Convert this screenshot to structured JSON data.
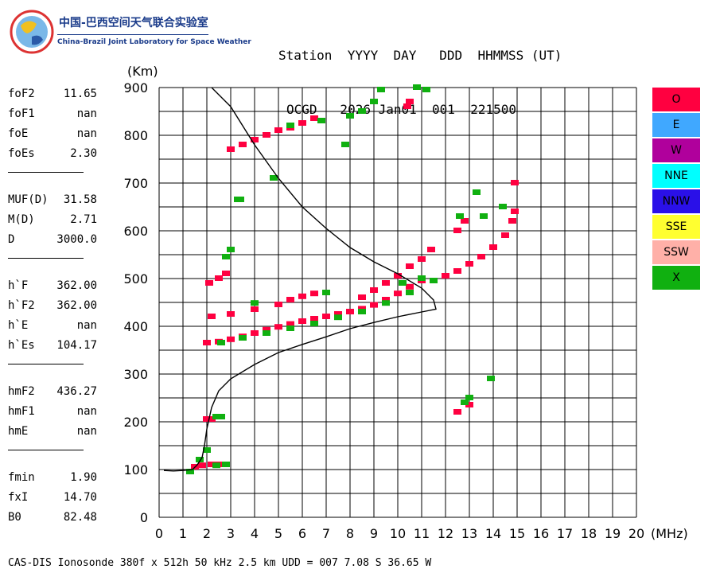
{
  "logo": {
    "title_cn": "中国-巴西空间天气联合实验室",
    "title_en": "China-Brazil Joint Laboratory for Space Weather"
  },
  "header": {
    "labels_line": "Station  YYYY  DAY   DDD  HHMMSS (UT)",
    "values_line": "OCGD   2026 Jan01  001  221500"
  },
  "params": [
    {
      "key": "foF2",
      "value": "11.65"
    },
    {
      "key": "foF1",
      "value": "nan"
    },
    {
      "key": "foE",
      "value": "nan"
    },
    {
      "key": "foEs",
      "value": "2.30"
    },
    {
      "key": "MUF(D)",
      "value": "31.58"
    },
    {
      "key": "M(D)",
      "value": "2.71"
    },
    {
      "key": "D",
      "value": "3000.0"
    },
    {
      "key": "h`F",
      "value": "362.00"
    },
    {
      "key": "h`F2",
      "value": "362.00"
    },
    {
      "key": "h`E",
      "value": "nan"
    },
    {
      "key": "h`Es",
      "value": "104.17"
    },
    {
      "key": "hmF2",
      "value": "436.27"
    },
    {
      "key": "hmF1",
      "value": "nan"
    },
    {
      "key": "hmE",
      "value": "nan"
    },
    {
      "key": "fmin",
      "value": "1.90"
    },
    {
      "key": "fxI",
      "value": "14.70"
    },
    {
      "key": "B0",
      "value": "82.48"
    }
  ],
  "legend": [
    {
      "label": "O",
      "color": "#ff0040"
    },
    {
      "label": "E",
      "color": "#40a8ff"
    },
    {
      "label": "W",
      "color": "#b0009c"
    },
    {
      "label": "NNE",
      "color": "#00ffff"
    },
    {
      "label": "NNW",
      "color": "#2a10e8"
    },
    {
      "label": "SSE",
      "color": "#ffff30"
    },
    {
      "label": "SSW",
      "color": "#ffb0a8"
    },
    {
      "label": "X",
      "color": "#10b010"
    }
  ],
  "footer": "CAS-DIS Ionosonde 380f x 512h 50 kHz 2.5 km UDD = 007 7.08 S 36.65 W",
  "chart_data": {
    "type": "scatter",
    "xlabel": "(MHz)",
    "ylabel": "(Km)",
    "xlim": [
      0,
      20
    ],
    "ylim": [
      0,
      900
    ],
    "x_ticks": [
      0,
      1,
      2,
      3,
      4,
      5,
      6,
      7,
      8,
      9,
      10,
      11,
      12,
      13,
      14,
      15,
      16,
      17,
      18,
      19,
      20
    ],
    "y_ticks": [
      0,
      100,
      200,
      300,
      400,
      500,
      600,
      700,
      800,
      900
    ],
    "grid": true,
    "legend_position": "right",
    "series": [
      {
        "name": "O",
        "values": [
          [
            2.0,
            365
          ],
          [
            2.5,
            367
          ],
          [
            3.0,
            372
          ],
          [
            3.5,
            378
          ],
          [
            4.0,
            385
          ],
          [
            4.5,
            392
          ],
          [
            5.0,
            398
          ],
          [
            5.5,
            404
          ],
          [
            6.0,
            410
          ],
          [
            6.5,
            415
          ],
          [
            7.0,
            420
          ],
          [
            7.5,
            425
          ],
          [
            8.0,
            430
          ],
          [
            8.5,
            436
          ],
          [
            9.0,
            444
          ],
          [
            9.5,
            455
          ],
          [
            10.0,
            468
          ],
          [
            10.5,
            482
          ],
          [
            11.0,
            495
          ],
          [
            2.2,
            420
          ],
          [
            3.0,
            425
          ],
          [
            4.0,
            435
          ],
          [
            5.0,
            445
          ],
          [
            5.5,
            455
          ],
          [
            6.0,
            462
          ],
          [
            6.5,
            468
          ],
          [
            8.5,
            460
          ],
          [
            9.0,
            475
          ],
          [
            9.5,
            490
          ],
          [
            10.0,
            505
          ],
          [
            10.5,
            525
          ],
          [
            11.0,
            540
          ],
          [
            11.4,
            560
          ],
          [
            3.0,
            770
          ],
          [
            3.5,
            780
          ],
          [
            4.0,
            790
          ],
          [
            4.5,
            800
          ],
          [
            5.0,
            810
          ],
          [
            5.5,
            815
          ],
          [
            6.0,
            825
          ],
          [
            6.5,
            835
          ],
          [
            2.1,
            490
          ],
          [
            2.5,
            500
          ],
          [
            2.8,
            510
          ],
          [
            12.0,
            505
          ],
          [
            12.5,
            515
          ],
          [
            13.0,
            530
          ],
          [
            13.5,
            545
          ],
          [
            14.0,
            565
          ],
          [
            14.5,
            590
          ],
          [
            14.8,
            620
          ],
          [
            14.9,
            640
          ],
          [
            14.9,
            700
          ],
          [
            12.5,
            600
          ],
          [
            12.8,
            620
          ],
          [
            10.4,
            860
          ],
          [
            10.5,
            870
          ],
          [
            12.5,
            220
          ],
          [
            13.0,
            235
          ],
          [
            1.5,
            105
          ],
          [
            1.8,
            108
          ],
          [
            2.2,
            110
          ],
          [
            2.5,
            110
          ],
          [
            2.0,
            205
          ],
          [
            2.2,
            205
          ]
        ]
      },
      {
        "name": "X",
        "values": [
          [
            2.6,
            365
          ],
          [
            3.5,
            375
          ],
          [
            4.5,
            385
          ],
          [
            5.5,
            395
          ],
          [
            6.5,
            405
          ],
          [
            7.5,
            418
          ],
          [
            8.5,
            430
          ],
          [
            9.5,
            448
          ],
          [
            10.5,
            470
          ],
          [
            11.5,
            495
          ],
          [
            4.0,
            448
          ],
          [
            7.0,
            470
          ],
          [
            10.2,
            490
          ],
          [
            11.0,
            500
          ],
          [
            8.0,
            840
          ],
          [
            8.5,
            850
          ],
          [
            9.0,
            870
          ],
          [
            9.3,
            895
          ],
          [
            10.8,
            900
          ],
          [
            11.2,
            895
          ],
          [
            5.5,
            820
          ],
          [
            6.8,
            830
          ],
          [
            7.8,
            780
          ],
          [
            4.8,
            710
          ],
          [
            3.0,
            560
          ],
          [
            2.8,
            545
          ],
          [
            3.3,
            665
          ],
          [
            3.4,
            665
          ],
          [
            13.0,
            250
          ],
          [
            12.8,
            240
          ],
          [
            13.9,
            290
          ],
          [
            12.6,
            630
          ],
          [
            13.3,
            680
          ],
          [
            13.6,
            630
          ],
          [
            14.4,
            650
          ],
          [
            1.3,
            95
          ],
          [
            1.7,
            120
          ],
          [
            2.0,
            140
          ],
          [
            2.4,
            108
          ],
          [
            2.8,
            110
          ],
          [
            2.4,
            210
          ],
          [
            2.6,
            210
          ]
        ]
      }
    ],
    "profile_curve": [
      [
        0.2,
        98
      ],
      [
        0.6,
        97
      ],
      [
        1.0,
        98
      ],
      [
        1.4,
        100
      ],
      [
        1.6,
        110
      ],
      [
        1.8,
        125
      ],
      [
        1.9,
        150
      ],
      [
        2.0,
        185
      ],
      [
        2.2,
        230
      ],
      [
        2.5,
        265
      ],
      [
        3.0,
        290
      ],
      [
        4.0,
        320
      ],
      [
        5.0,
        345
      ],
      [
        6.0,
        362
      ],
      [
        7.0,
        378
      ],
      [
        8.0,
        395
      ],
      [
        9.0,
        408
      ],
      [
        10.0,
        420
      ],
      [
        11.0,
        430
      ],
      [
        11.6,
        436
      ],
      [
        11.5,
        455
      ],
      [
        11.0,
        480
      ],
      [
        10.0,
        510
      ],
      [
        9.0,
        535
      ],
      [
        8.0,
        565
      ],
      [
        7.0,
        605
      ],
      [
        6.0,
        650
      ],
      [
        5.0,
        710
      ],
      [
        4.0,
        780
      ],
      [
        3.0,
        860
      ],
      [
        2.2,
        900
      ]
    ]
  }
}
